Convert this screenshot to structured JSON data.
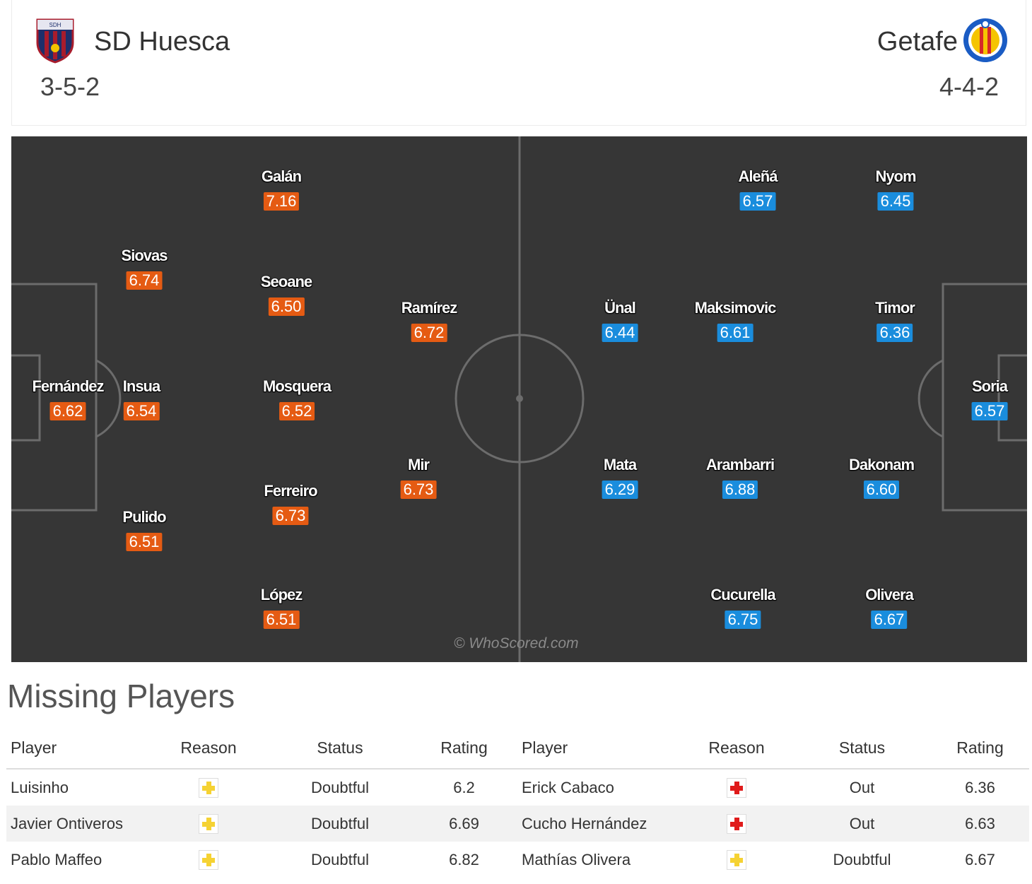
{
  "home": {
    "name": "SD Huesca",
    "formation": "3-5-2",
    "crest_icon": "sd-huesca-crest-icon",
    "color": "#e55b13",
    "players": [
      {
        "name": "Fernández",
        "rating": "6.62"
      },
      {
        "name": "Siovas",
        "rating": "6.74"
      },
      {
        "name": "Insua",
        "rating": "6.54"
      },
      {
        "name": "Pulido",
        "rating": "6.51"
      },
      {
        "name": "Galán",
        "rating": "7.16"
      },
      {
        "name": "Seoane",
        "rating": "6.50"
      },
      {
        "name": "Mosquera",
        "rating": "6.52"
      },
      {
        "name": "Ferreiro",
        "rating": "6.73"
      },
      {
        "name": "López",
        "rating": "6.51"
      },
      {
        "name": "Ramírez",
        "rating": "6.72"
      },
      {
        "name": "Mir",
        "rating": "6.73"
      }
    ]
  },
  "away": {
    "name": "Getafe",
    "formation": "4-4-2",
    "crest_icon": "getafe-crest-icon",
    "color": "#1a8ddd",
    "players": [
      {
        "name": "Aleñá",
        "rating": "6.57"
      },
      {
        "name": "Nyom",
        "rating": "6.45"
      },
      {
        "name": "Ünal",
        "rating": "6.44"
      },
      {
        "name": "Maksimovic",
        "rating": "6.61"
      },
      {
        "name": "Timor",
        "rating": "6.36"
      },
      {
        "name": "Soria",
        "rating": "6.57"
      },
      {
        "name": "Mata",
        "rating": "6.29"
      },
      {
        "name": "Arambarri",
        "rating": "6.88"
      },
      {
        "name": "Dakonam",
        "rating": "6.60"
      },
      {
        "name": "Cucurella",
        "rating": "6.75"
      },
      {
        "name": "Olivera",
        "rating": "6.67"
      }
    ]
  },
  "watermark": "© WhoScored.com",
  "missing": {
    "title": "Missing Players",
    "headers": [
      "Player",
      "Reason",
      "Status",
      "Rating",
      "Player",
      "Reason",
      "Status",
      "Rating"
    ],
    "rows": [
      {
        "home_player": "Luisinho",
        "home_reason": "doubtful-icon",
        "home_status": "Doubtful",
        "home_rating": "6.2",
        "away_player": "Erick Cabaco",
        "away_reason": "injury-icon",
        "away_status": "Out",
        "away_rating": "6.36"
      },
      {
        "home_player": "Javier Ontiveros",
        "home_reason": "doubtful-icon",
        "home_status": "Doubtful",
        "home_rating": "6.69",
        "away_player": "Cucho Hernández",
        "away_reason": "injury-icon",
        "away_status": "Out",
        "away_rating": "6.63"
      },
      {
        "home_player": "Pablo Maffeo",
        "home_reason": "doubtful-icon",
        "home_status": "Doubtful",
        "home_rating": "6.82",
        "away_player": "Mathías Olivera",
        "away_reason": "doubtful-icon",
        "away_status": "Doubtful",
        "away_rating": "6.67"
      }
    ],
    "reason_colors": {
      "doubtful": "#f5d233",
      "injury": "#e01b1b"
    }
  }
}
